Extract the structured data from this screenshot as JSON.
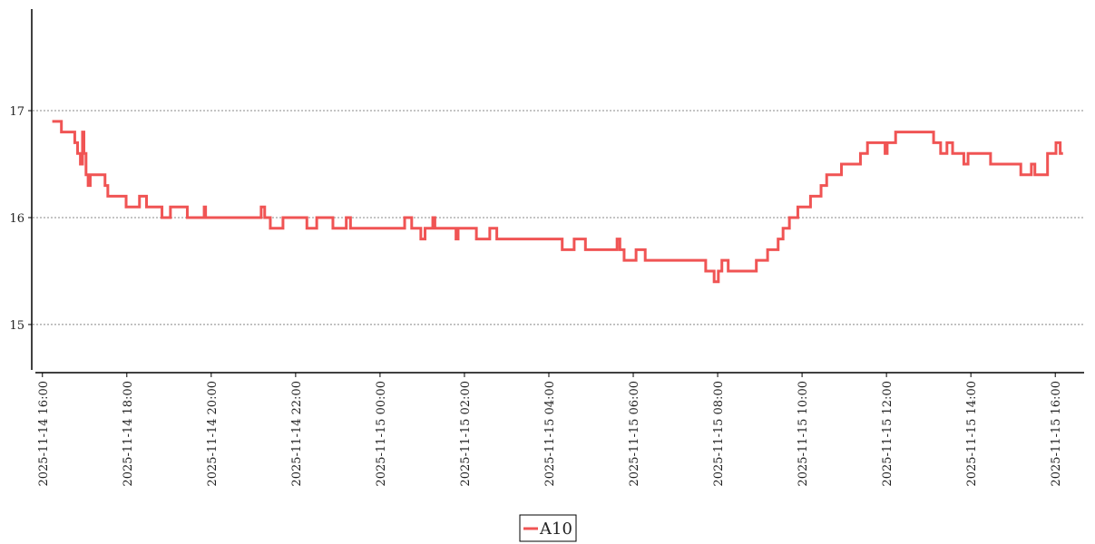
{
  "chart_data": {
    "type": "line",
    "step": true,
    "x": [
      "2025-11-14 16:14",
      "2025-11-14 16:27",
      "2025-11-14 16:46",
      "2025-11-14 16:50",
      "2025-11-14 16:54",
      "2025-11-14 16:57",
      "2025-11-14 16:59",
      "2025-11-14 17:02",
      "2025-11-14 17:05",
      "2025-11-14 17:08",
      "2025-11-14 17:29",
      "2025-11-14 17:33",
      "2025-11-14 17:59",
      "2025-11-14 18:18",
      "2025-11-14 18:28",
      "2025-11-14 18:50",
      "2025-11-14 19:02",
      "2025-11-14 19:26",
      "2025-11-14 19:50",
      "2025-11-14 19:52",
      "2025-11-14 21:11",
      "2025-11-14 21:16",
      "2025-11-14 21:24",
      "2025-11-14 21:42",
      "2025-11-14 22:16",
      "2025-11-14 22:30",
      "2025-11-14 22:53",
      "2025-11-14 23:12",
      "2025-11-14 23:18",
      "2025-11-15 00:35",
      "2025-11-15 00:45",
      "2025-11-15 00:58",
      "2025-11-15 01:04",
      "2025-11-15 01:15",
      "2025-11-15 01:18",
      "2025-11-15 01:48",
      "2025-11-15 01:51",
      "2025-11-15 02:17",
      "2025-11-15 02:36",
      "2025-11-15 02:46",
      "2025-11-15 04:19",
      "2025-11-15 04:36",
      "2025-11-15 04:52",
      "2025-11-15 05:37",
      "2025-11-15 05:41",
      "2025-11-15 05:47",
      "2025-11-15 06:04",
      "2025-11-15 06:17",
      "2025-11-15 07:43",
      "2025-11-15 07:55",
      "2025-11-15 08:01",
      "2025-11-15 08:06",
      "2025-11-15 08:15",
      "2025-11-15 08:55",
      "2025-11-15 09:11",
      "2025-11-15 09:26",
      "2025-11-15 09:33",
      "2025-11-15 09:42",
      "2025-11-15 09:54",
      "2025-11-15 10:12",
      "2025-11-15 10:27",
      "2025-11-15 10:35",
      "2025-11-15 10:56",
      "2025-11-15 11:23",
      "2025-11-15 11:33",
      "2025-11-15 11:58",
      "2025-11-15 12:01",
      "2025-11-15 12:13",
      "2025-11-15 13:07",
      "2025-11-15 13:17",
      "2025-11-15 13:26",
      "2025-11-15 13:34",
      "2025-11-15 13:50",
      "2025-11-15 13:56",
      "2025-11-15 14:28",
      "2025-11-15 15:11",
      "2025-11-15 15:26",
      "2025-11-15 15:31",
      "2025-11-15 15:49",
      "2025-11-15 16:01",
      "2025-11-15 16:07",
      "2025-11-15 16:11"
    ],
    "series": [
      {
        "name": "A10",
        "color": "#f05454",
        "values": [
          16.9,
          16.8,
          16.7,
          16.6,
          16.5,
          16.8,
          16.6,
          16.4,
          16.3,
          16.4,
          16.3,
          16.2,
          16.1,
          16.2,
          16.1,
          16.0,
          16.1,
          16.0,
          16.1,
          16.0,
          16.1,
          16.0,
          15.9,
          16.0,
          15.9,
          16.0,
          15.9,
          16.0,
          15.9,
          16.0,
          15.9,
          15.8,
          15.9,
          16.0,
          15.9,
          15.8,
          15.9,
          15.8,
          15.9,
          15.8,
          15.7,
          15.8,
          15.7,
          15.8,
          15.7,
          15.6,
          15.7,
          15.6,
          15.5,
          15.4,
          15.5,
          15.6,
          15.5,
          15.6,
          15.7,
          15.8,
          15.9,
          16.0,
          16.1,
          16.2,
          16.3,
          16.4,
          16.5,
          16.6,
          16.7,
          16.6,
          16.7,
          16.8,
          16.7,
          16.6,
          16.7,
          16.6,
          16.5,
          16.6,
          16.5,
          16.4,
          16.5,
          16.4,
          16.6,
          16.7,
          16.6,
          16.6
        ]
      }
    ],
    "xlim": [
      "2025-11-14 15:50",
      "2025-11-15 16:41"
    ],
    "xticks": [
      "2025-11-14 16:00",
      "2025-11-14 18:00",
      "2025-11-14 20:00",
      "2025-11-14 22:00",
      "2025-11-15 00:00",
      "2025-11-15 02:00",
      "2025-11-15 04:00",
      "2025-11-15 06:00",
      "2025-11-15 08:00",
      "2025-11-15 10:00",
      "2025-11-15 12:00",
      "2025-11-15 14:00",
      "2025-11-15 16:00"
    ],
    "ylim": [
      14.55,
      17.95
    ],
    "yticks": [
      15,
      16,
      17
    ],
    "grid": true,
    "legend": "bottom"
  }
}
